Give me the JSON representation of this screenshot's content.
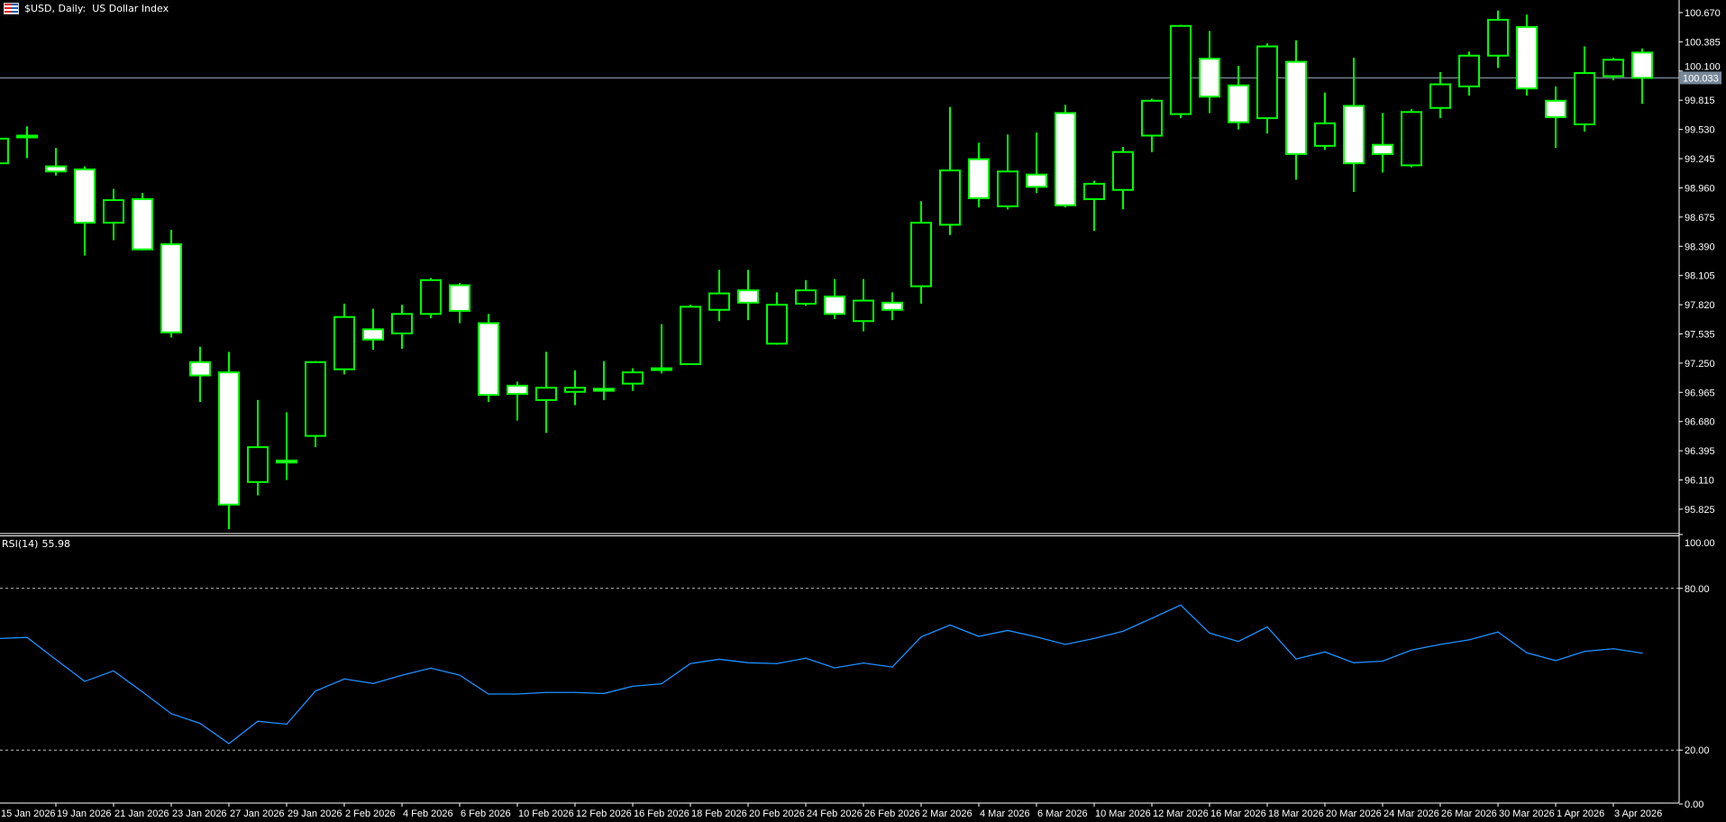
{
  "header": {
    "symbol": "$USD",
    "timeframe": "Daily:",
    "description": "US Dollar Index",
    "title": "$USD, Daily:  US Dollar Index"
  },
  "indicator": {
    "name": "RSI(14)",
    "value": "55.98"
  },
  "colors": {
    "background": "#000000",
    "candle_outline": "#00ff00",
    "bear_fill": "#ffffff",
    "bull_fill": "#000000",
    "rsi_line": "#1e90ff",
    "price_line": "#778899",
    "grid_levels": "#c0c0c0"
  },
  "current_price": {
    "label": "100.033",
    "value": 100.033
  },
  "chart_data": [
    {
      "type": "candlestick",
      "title": "$USD, Daily: US Dollar Index",
      "ylim": [
        95.587,
        100.793
      ],
      "y_ticks": [
        "100.670",
        "100.385",
        "100.100",
        "99.815",
        "99.530",
        "99.245",
        "98.960",
        "98.675",
        "98.390",
        "98.105",
        "97.820",
        "97.535",
        "97.250",
        "96.965",
        "96.680",
        "96.395",
        "96.110",
        "95.825"
      ],
      "x_labels": [
        {
          "i": 0,
          "label": "15 Jan 2026"
        },
        {
          "i": 2,
          "label": "19 Jan 2026"
        },
        {
          "i": 4,
          "label": "21 Jan 2026"
        },
        {
          "i": 6,
          "label": "23 Jan 2026"
        },
        {
          "i": 8,
          "label": "27 Jan 2026"
        },
        {
          "i": 10,
          "label": "29 Jan 2026"
        },
        {
          "i": 12,
          "label": "2 Feb 2026"
        },
        {
          "i": 14,
          "label": "4 Feb 2026"
        },
        {
          "i": 16,
          "label": "6 Feb 2026"
        },
        {
          "i": 18,
          "label": "10 Feb 2026"
        },
        {
          "i": 20,
          "label": "12 Feb 2026"
        },
        {
          "i": 22,
          "label": "16 Feb 2026"
        },
        {
          "i": 24,
          "label": "18 Feb 2026"
        },
        {
          "i": 26,
          "label": "20 Feb 2026"
        },
        {
          "i": 28,
          "label": "24 Feb 2026"
        },
        {
          "i": 30,
          "label": "26 Feb 2026"
        },
        {
          "i": 32,
          "label": "2 Mar 2026"
        },
        {
          "i": 34,
          "label": "4 Mar 2026"
        },
        {
          "i": 36,
          "label": "6 Mar 2026"
        },
        {
          "i": 38,
          "label": "10 Mar 2026"
        },
        {
          "i": 40,
          "label": "12 Mar 2026"
        },
        {
          "i": 42,
          "label": "16 Mar 2026"
        },
        {
          "i": 44,
          "label": "18 Mar 2026"
        },
        {
          "i": 46,
          "label": "20 Mar 2026"
        },
        {
          "i": 48,
          "label": "24 Mar 2026"
        },
        {
          "i": 50,
          "label": "26 Mar 2026"
        },
        {
          "i": 52,
          "label": "30 Mar 2026"
        },
        {
          "i": 54,
          "label": "1 Apr 2026"
        },
        {
          "i": 56,
          "label": "3 Apr 2026"
        }
      ],
      "ohlc": [
        [
          99.2,
          99.47,
          99.17,
          99.44
        ],
        [
          99.46,
          99.56,
          99.25,
          99.47
        ],
        [
          99.17,
          99.35,
          99.08,
          99.12
        ],
        [
          99.14,
          99.17,
          98.3,
          98.62
        ],
        [
          98.62,
          98.95,
          98.45,
          98.84
        ],
        [
          98.85,
          98.91,
          98.35,
          98.36
        ],
        [
          98.41,
          98.55,
          97.5,
          97.55
        ],
        [
          97.26,
          97.41,
          96.87,
          97.13
        ],
        [
          97.16,
          97.36,
          95.63,
          95.87
        ],
        [
          96.09,
          96.89,
          95.96,
          96.43
        ],
        [
          96.3,
          96.77,
          96.11,
          96.28
        ],
        [
          96.54,
          97.27,
          96.43,
          97.26
        ],
        [
          97.19,
          97.83,
          97.14,
          97.7
        ],
        [
          97.58,
          97.78,
          97.38,
          97.48
        ],
        [
          97.54,
          97.82,
          97.39,
          97.73
        ],
        [
          97.73,
          98.08,
          97.69,
          98.06
        ],
        [
          98.01,
          98.03,
          97.64,
          97.76
        ],
        [
          97.64,
          97.73,
          96.87,
          96.94
        ],
        [
          97.03,
          97.07,
          96.69,
          96.95
        ],
        [
          96.89,
          97.36,
          96.57,
          97.01
        ],
        [
          96.97,
          97.18,
          96.84,
          97.01
        ],
        [
          97.0,
          97.27,
          96.89,
          96.98
        ],
        [
          97.05,
          97.2,
          96.98,
          97.16
        ],
        [
          97.19,
          97.63,
          97.15,
          97.2
        ],
        [
          97.24,
          97.82,
          97.24,
          97.8
        ],
        [
          97.77,
          98.16,
          97.66,
          97.93
        ],
        [
          97.96,
          98.16,
          97.67,
          97.84
        ],
        [
          97.44,
          97.94,
          97.43,
          97.82
        ],
        [
          97.83,
          98.06,
          97.81,
          97.96
        ],
        [
          97.9,
          98.07,
          97.68,
          97.73
        ],
        [
          97.66,
          98.07,
          97.56,
          97.86
        ],
        [
          97.84,
          97.94,
          97.67,
          97.77
        ],
        [
          98.0,
          98.83,
          97.83,
          98.62
        ],
        [
          98.6,
          99.75,
          98.5,
          99.13
        ],
        [
          99.24,
          99.4,
          98.77,
          98.86
        ],
        [
          98.78,
          99.48,
          98.75,
          99.12
        ],
        [
          99.09,
          99.5,
          98.91,
          98.97
        ],
        [
          99.69,
          99.77,
          98.77,
          98.79
        ],
        [
          98.85,
          99.03,
          98.54,
          99.0
        ],
        [
          98.94,
          99.36,
          98.75,
          99.31
        ],
        [
          99.47,
          99.83,
          99.31,
          99.81
        ],
        [
          99.68,
          100.55,
          99.64,
          100.54
        ],
        [
          100.22,
          100.49,
          99.69,
          99.85
        ],
        [
          99.96,
          100.15,
          99.53,
          99.6
        ],
        [
          99.64,
          100.37,
          99.49,
          100.34
        ],
        [
          100.19,
          100.4,
          99.04,
          99.29
        ],
        [
          99.37,
          99.89,
          99.33,
          99.59
        ],
        [
          99.76,
          100.23,
          98.92,
          99.2
        ],
        [
          99.38,
          99.69,
          99.11,
          99.29
        ],
        [
          99.18,
          99.73,
          99.16,
          99.7
        ],
        [
          99.74,
          100.09,
          99.64,
          99.97
        ],
        [
          99.95,
          100.29,
          99.86,
          100.25
        ],
        [
          100.25,
          100.69,
          100.13,
          100.6
        ],
        [
          100.53,
          100.65,
          99.86,
          99.93
        ],
        [
          99.81,
          99.95,
          99.35,
          99.65
        ],
        [
          99.58,
          100.34,
          99.51,
          100.08
        ],
        [
          100.05,
          100.23,
          100.01,
          100.21
        ],
        [
          100.28,
          100.32,
          99.78,
          100.033
        ]
      ]
    },
    {
      "type": "line",
      "title": "RSI(14) 55.98",
      "ylim": [
        0,
        100
      ],
      "y_ticks": [
        "100.00",
        "80.00",
        "20.00",
        "0.00"
      ],
      "levels": [
        80,
        20
      ],
      "values": [
        61.4,
        61.8,
        53.6,
        45.5,
        49.4,
        41.6,
        33.5,
        29.9,
        22.4,
        30.7,
        29.6,
        41.9,
        46.4,
        44.7,
        47.8,
        50.4,
        47.8,
        40.8,
        40.8,
        41.4,
        41.4,
        41.0,
        43.7,
        44.6,
        52.1,
        53.7,
        52.4,
        52.1,
        54.1,
        50.5,
        52.3,
        50.8,
        62.0,
        66.4,
        62.2,
        64.4,
        62.0,
        59.2,
        61.4,
        64.1,
        68.9,
        73.8,
        63.4,
        60.3,
        65.7,
        53.8,
        56.4,
        52.4,
        53.0,
        57.1,
        59.2,
        60.9,
        63.8,
        56.1,
        53.2,
        56.6,
        57.6,
        55.98
      ]
    }
  ]
}
